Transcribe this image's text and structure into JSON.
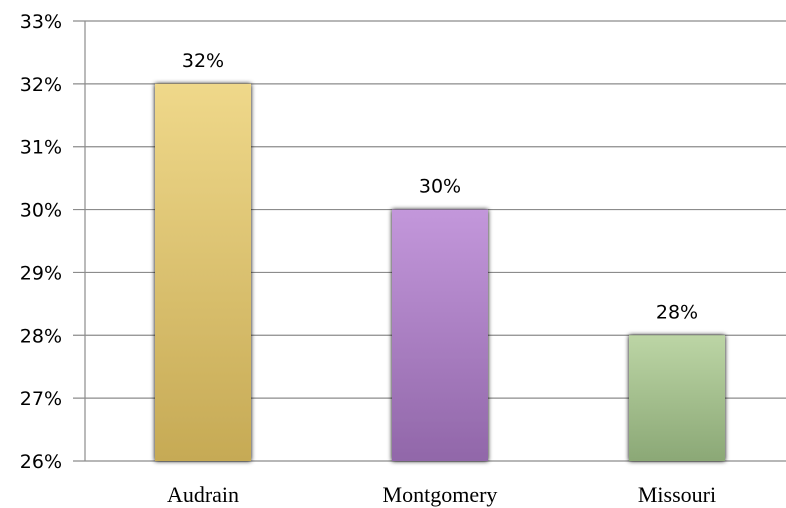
{
  "chart_data": {
    "type": "bar",
    "categories": [
      "Audrain",
      "Montgomery",
      "Missouri"
    ],
    "values": [
      32,
      30,
      28
    ],
    "data_labels": [
      "32%",
      "30%",
      "28%"
    ],
    "ylim": [
      26,
      33
    ],
    "yticks": [
      26,
      27,
      28,
      29,
      30,
      31,
      32,
      33
    ],
    "ytick_labels": [
      "26%",
      "27%",
      "28%",
      "29%",
      "30%",
      "31%",
      "32%",
      "33%"
    ],
    "title": "",
    "xlabel": "",
    "ylabel": "",
    "grid": true,
    "legend": "none",
    "bar_colors": [
      {
        "top": "#efd88a",
        "bottom": "#c6aa55"
      },
      {
        "top": "#c397db",
        "bottom": "#9167a9"
      },
      {
        "top": "#bcd5a5",
        "bottom": "#8ba876"
      }
    ]
  }
}
